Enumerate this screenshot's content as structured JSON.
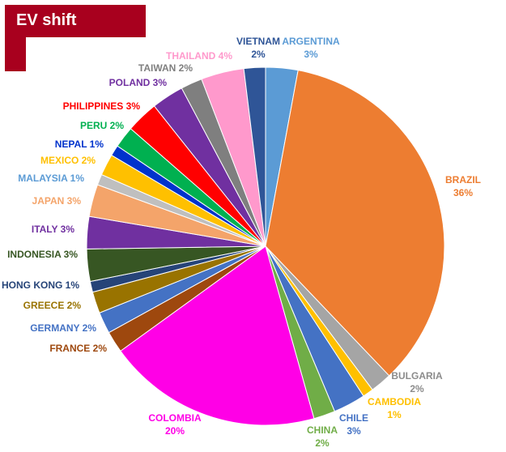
{
  "header": {
    "title": "EV shift"
  },
  "chart_data": {
    "type": "pie",
    "title": "EV shift",
    "slices": [
      {
        "label": "ARGENTINA",
        "value_label": "3%",
        "value": 3,
        "color": "#5b9bd5"
      },
      {
        "label": "BRAZIL",
        "value_label": "36%",
        "value": 36,
        "color": "#ed7d31"
      },
      {
        "label": "BULGARIA",
        "value_label": "2%",
        "value": 2,
        "color": "#a5a5a5"
      },
      {
        "label": "CAMBODIA",
        "value_label": "1%",
        "value": 1,
        "color": "#ffc000"
      },
      {
        "label": "CHILE",
        "value_label": "3%",
        "value": 3,
        "color": "#4472c4"
      },
      {
        "label": "CHINA",
        "value_label": "2%",
        "value": 2,
        "color": "#70ad47"
      },
      {
        "label": "COLOMBIA",
        "value_label": "20%",
        "value": 20,
        "color": "#ff00e6"
      },
      {
        "label": "FRANCE",
        "value_label": "2%",
        "value": 2,
        "color": "#9e480e"
      },
      {
        "label": "GERMANY",
        "value_label": "2%",
        "value": 2,
        "color": "#4472c4"
      },
      {
        "label": "GREECE",
        "value_label": "2%",
        "value": 2,
        "color": "#997300"
      },
      {
        "label": "HONG KONG",
        "value_label": "1%",
        "value": 1,
        "color": "#264478"
      },
      {
        "label": "INDONESIA",
        "value_label": "3%",
        "value": 3,
        "color": "#375623"
      },
      {
        "label": "ITALY",
        "value_label": "3%",
        "value": 3,
        "color": "#7030a0"
      },
      {
        "label": "JAPAN",
        "value_label": "3%",
        "value": 3,
        "color": "#f4a46a"
      },
      {
        "label": "MALAYSIA",
        "value_label": "1%",
        "value": 1,
        "color": "#bfbfbf"
      },
      {
        "label": "MEXICO",
        "value_label": "2%",
        "value": 2,
        "color": "#ffc000"
      },
      {
        "label": "NEPAL",
        "value_label": "1%",
        "value": 1,
        "color": "#0033cc"
      },
      {
        "label": "PERU",
        "value_label": "2%",
        "value": 2,
        "color": "#00b050"
      },
      {
        "label": "PHILIPPINES",
        "value_label": "3%",
        "value": 3,
        "color": "#ff0000"
      },
      {
        "label": "POLAND",
        "value_label": "3%",
        "value": 3,
        "color": "#7030a0"
      },
      {
        "label": "TAIWAN",
        "value_label": "2%",
        "value": 2,
        "color": "#7f7f7f"
      },
      {
        "label": "THAILAND",
        "value_label": "4%",
        "value": 4,
        "color": "#ff99cc"
      },
      {
        "label": "VIETNAM",
        "value_label": "2%",
        "value": 2,
        "color": "#2f5597"
      }
    ]
  }
}
